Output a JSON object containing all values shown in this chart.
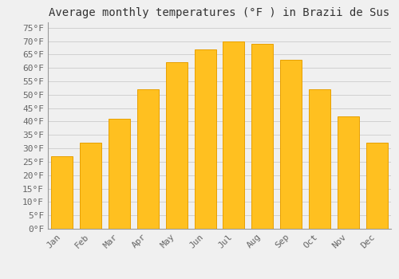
{
  "title": "Average monthly temperatures (°F ) in Brazii de Sus",
  "months": [
    "Jan",
    "Feb",
    "Mar",
    "Apr",
    "May",
    "Jun",
    "Jul",
    "Aug",
    "Sep",
    "Oct",
    "Nov",
    "Dec"
  ],
  "values": [
    27,
    32,
    41,
    52,
    62,
    67,
    70,
    69,
    63,
    52,
    42,
    32
  ],
  "bar_color": "#FFC020",
  "bar_edge_color": "#E8A000",
  "background_color": "#F0F0F0",
  "grid_color": "#CCCCCC",
  "yticks": [
    0,
    5,
    10,
    15,
    20,
    25,
    30,
    35,
    40,
    45,
    50,
    55,
    60,
    65,
    70,
    75
  ],
  "ytick_labels": [
    "0°F",
    "5°F",
    "10°F",
    "15°F",
    "20°F",
    "25°F",
    "30°F",
    "35°F",
    "40°F",
    "45°F",
    "50°F",
    "55°F",
    "60°F",
    "65°F",
    "70°F",
    "75°F"
  ],
  "ylim": [
    0,
    77
  ],
  "title_fontsize": 10,
  "tick_fontsize": 8,
  "font_family": "monospace",
  "tick_color": "#666666",
  "spine_color": "#999999"
}
